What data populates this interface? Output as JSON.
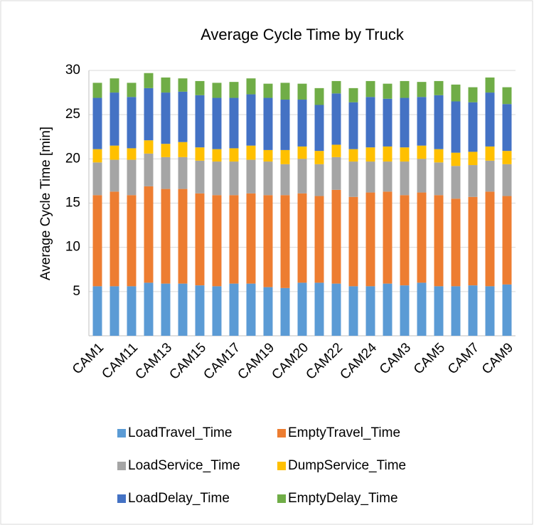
{
  "chart_data": {
    "type": "stacked_bar",
    "title": "Average Cycle Time by Truck",
    "y_label": "Average Cycle Time [min]",
    "categories": [
      "CAM1",
      null,
      "CAM11",
      null,
      "CAM13",
      null,
      "CAM15",
      null,
      "CAM17",
      null,
      "CAM19",
      null,
      "CAM20",
      null,
      "CAM22",
      null,
      "CAM24",
      null,
      "CAM3",
      null,
      "CAM5",
      null,
      "CAM7",
      null,
      "CAM9"
    ],
    "ylim": [
      0,
      30
    ],
    "yticks": [
      5,
      10,
      15,
      20,
      25,
      30
    ],
    "grid": true,
    "series": [
      {
        "name": "LoadTravel_Time",
        "color": "#5b9bd5",
        "values": [
          5.6,
          5.6,
          5.6,
          6.0,
          5.9,
          5.9,
          5.7,
          5.6,
          5.9,
          5.9,
          5.5,
          5.4,
          6.0,
          6.0,
          5.9,
          5.6,
          5.6,
          5.9,
          5.7,
          6.0,
          5.6,
          5.6,
          5.7,
          5.6,
          5.8
        ]
      },
      {
        "name": "EmptyTravel_Time",
        "color": "#ed7d31",
        "values": [
          10.3,
          10.7,
          10.3,
          10.9,
          10.7,
          10.7,
          10.4,
          10.3,
          10.0,
          10.2,
          10.4,
          10.5,
          10.1,
          9.8,
          10.6,
          10.1,
          10.6,
          10.4,
          10.2,
          10.2,
          10.3,
          9.9,
          10.0,
          10.7,
          10.0
        ]
      },
      {
        "name": "LoadService_Time",
        "color": "#a5a5a5",
        "values": [
          3.7,
          3.6,
          4.0,
          3.7,
          3.6,
          3.6,
          3.7,
          3.8,
          3.8,
          3.8,
          3.8,
          3.5,
          3.9,
          3.6,
          3.7,
          4.0,
          3.5,
          3.4,
          3.8,
          3.8,
          3.7,
          3.7,
          3.6,
          3.5,
          3.6
        ]
      },
      {
        "name": "DumpService_Time",
        "color": "#ffc000",
        "values": [
          1.5,
          1.6,
          1.3,
          1.5,
          1.5,
          1.7,
          1.5,
          1.4,
          1.5,
          1.6,
          1.3,
          1.6,
          1.4,
          1.5,
          1.4,
          1.4,
          1.6,
          1.7,
          1.6,
          1.5,
          1.5,
          1.5,
          1.5,
          1.6,
          1.5
        ]
      },
      {
        "name": "LoadDelay_Time",
        "color": "#4472c4",
        "values": [
          5.8,
          6.0,
          5.8,
          5.9,
          5.8,
          5.7,
          5.9,
          5.8,
          5.7,
          5.8,
          5.9,
          5.7,
          5.3,
          5.2,
          5.8,
          5.3,
          5.7,
          5.4,
          5.6,
          5.5,
          6.1,
          5.8,
          5.6,
          6.1,
          5.3
        ]
      },
      {
        "name": "EmptyDelay_Time",
        "color": "#70ad47",
        "values": [
          1.7,
          1.6,
          1.6,
          1.7,
          1.7,
          1.5,
          1.6,
          1.7,
          1.8,
          1.8,
          1.6,
          1.9,
          1.8,
          1.9,
          1.4,
          1.6,
          1.8,
          1.7,
          1.9,
          1.7,
          1.6,
          1.9,
          1.7,
          1.7,
          1.9
        ]
      }
    ],
    "legend": "bottom"
  }
}
